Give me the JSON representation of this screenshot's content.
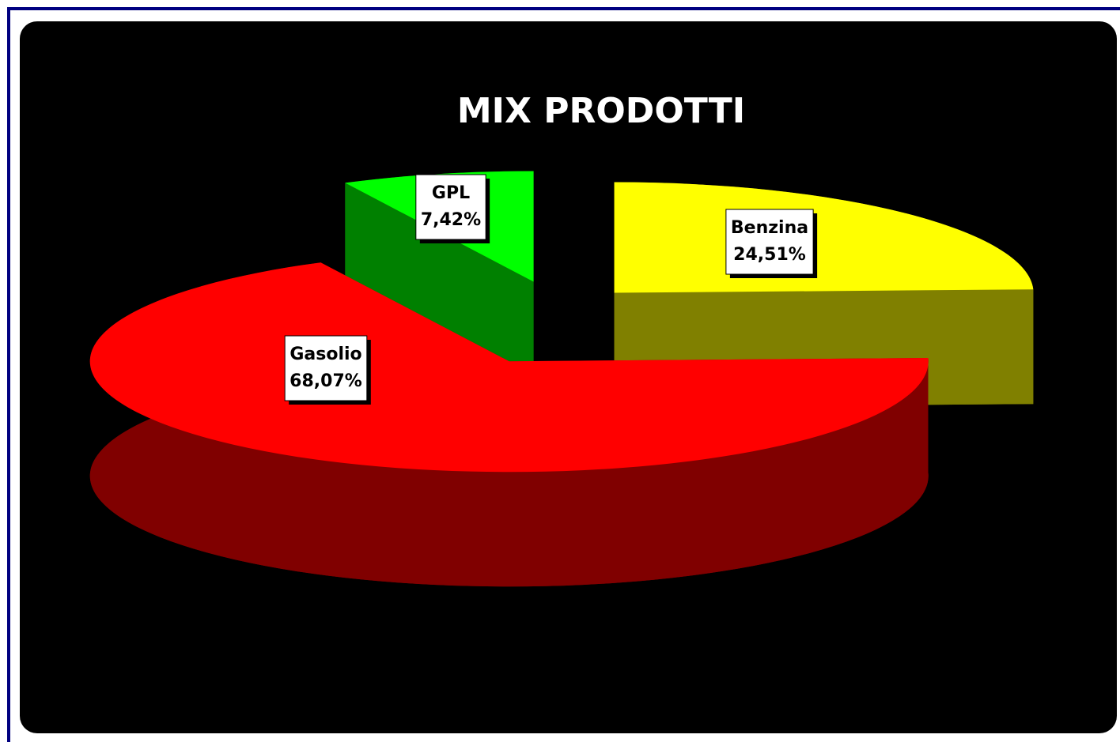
{
  "chart_data": {
    "type": "pie3d",
    "title": "MIX PRODOTTI",
    "categories": [
      "Benzina",
      "Gasolio",
      "GPL"
    ],
    "values": [
      24.51,
      68.07,
      7.42
    ],
    "value_labels": [
      "24,51%",
      "68,07%",
      "7,42%"
    ],
    "colors": [
      "#ffff00",
      "#ff0000",
      "#00ff00"
    ],
    "exploded": true
  }
}
